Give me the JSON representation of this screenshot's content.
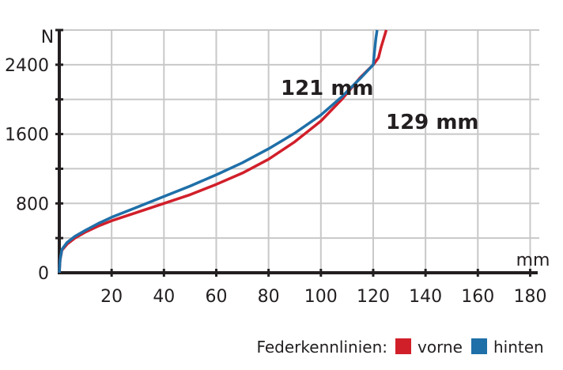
{
  "chart_data": {
    "type": "line",
    "title": "",
    "xlabel": "mm",
    "ylabel": "N",
    "xlim": [
      0,
      185
    ],
    "ylim": [
      0,
      2800
    ],
    "grid": true,
    "x_ticks": [
      {
        "value": 20,
        "label": "20"
      },
      {
        "value": 40,
        "label": "40"
      },
      {
        "value": 60,
        "label": "60"
      },
      {
        "value": 80,
        "label": "80"
      },
      {
        "value": 100,
        "label": "100"
      },
      {
        "value": 120,
        "label": "120"
      },
      {
        "value": 140,
        "label": "140"
      },
      {
        "value": 160,
        "label": "160"
      },
      {
        "value": 180,
        "label": "180"
      }
    ],
    "y_ticks": [
      {
        "value": 0,
        "label": "0"
      },
      {
        "value": 800,
        "label": "800"
      },
      {
        "value": 1600,
        "label": "1600"
      },
      {
        "value": 2400,
        "label": "2400"
      }
    ],
    "legend": {
      "position": "bottom-right",
      "title": "Federkennlinien:"
    },
    "series": [
      {
        "name": "vorne",
        "color": "#d11f2a",
        "points": [
          [
            0,
            0
          ],
          [
            0.3,
            150
          ],
          [
            1,
            260
          ],
          [
            3,
            330
          ],
          [
            6,
            400
          ],
          [
            10,
            470
          ],
          [
            15,
            540
          ],
          [
            20,
            600
          ],
          [
            30,
            700
          ],
          [
            40,
            800
          ],
          [
            50,
            900
          ],
          [
            60,
            1020
          ],
          [
            70,
            1150
          ],
          [
            80,
            1310
          ],
          [
            90,
            1510
          ],
          [
            100,
            1750
          ],
          [
            108,
            2000
          ],
          [
            115,
            2250
          ],
          [
            120,
            2400
          ],
          [
            122,
            2480
          ],
          [
            123,
            2600
          ],
          [
            124,
            2700
          ],
          [
            125,
            2800
          ]
        ]
      },
      {
        "name": "hinten",
        "color": "#1f6fa8",
        "points": [
          [
            0,
            0
          ],
          [
            0.3,
            150
          ],
          [
            1,
            270
          ],
          [
            3,
            350
          ],
          [
            6,
            420
          ],
          [
            10,
            490
          ],
          [
            15,
            570
          ],
          [
            20,
            640
          ],
          [
            30,
            760
          ],
          [
            40,
            880
          ],
          [
            50,
            1000
          ],
          [
            60,
            1130
          ],
          [
            70,
            1270
          ],
          [
            80,
            1430
          ],
          [
            90,
            1610
          ],
          [
            100,
            1820
          ],
          [
            108,
            2030
          ],
          [
            115,
            2240
          ],
          [
            120,
            2400
          ],
          [
            120.5,
            2550
          ],
          [
            121,
            2700
          ],
          [
            121.5,
            2800
          ]
        ]
      }
    ],
    "annotations": [
      {
        "text": "121 mm",
        "x": 121,
        "y": 2400
      },
      {
        "text": "129 mm",
        "x": 125,
        "y": 2400
      }
    ]
  }
}
